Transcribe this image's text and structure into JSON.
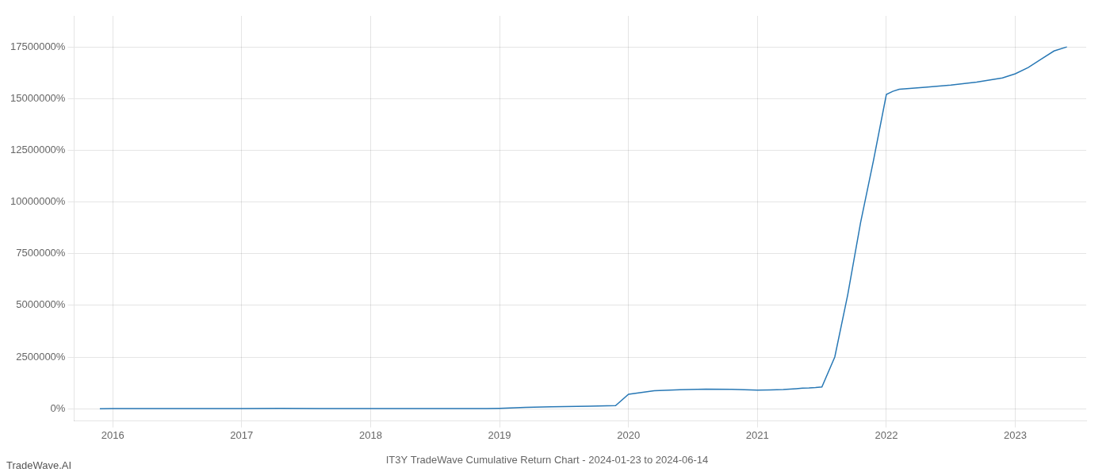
{
  "chart_data": {
    "type": "line",
    "title": "IT3Y TradeWave Cumulative Return Chart - 2024-01-23 to 2024-06-14",
    "annotations": [
      "TradeWave.AI"
    ],
    "color": "#2878b5",
    "grid": true,
    "x": [
      2015.9,
      2016.0,
      2016.5,
      2017.0,
      2017.3,
      2017.6,
      2018.0,
      2018.5,
      2018.9,
      2019.0,
      2019.2,
      2019.4,
      2019.7,
      2019.9,
      2020.0,
      2020.2,
      2020.4,
      2020.6,
      2020.8,
      2021.0,
      2021.1,
      2021.2,
      2021.3,
      2021.35,
      2021.4,
      2021.45,
      2021.5,
      2021.6,
      2021.7,
      2021.8,
      2021.9,
      2022.0,
      2022.05,
      2022.1,
      2022.2,
      2022.3,
      2022.5,
      2022.7,
      2022.9,
      2023.0,
      2023.1,
      2023.2,
      2023.3,
      2023.4
    ],
    "values": [
      0,
      2000,
      5000,
      10000,
      12000,
      10000,
      8000,
      5000,
      6000,
      20000,
      60000,
      90000,
      120000,
      150000,
      700000,
      870000,
      920000,
      950000,
      940000,
      900000,
      910000,
      930000,
      970000,
      990000,
      1000000,
      1020000,
      1050000,
      2500000,
      5500000,
      9000000,
      12000000,
      15200000,
      15350000,
      15450000,
      15500000,
      15550000,
      15650000,
      15800000,
      16000000,
      16200000,
      16500000,
      16900000,
      17300000,
      17500000
    ],
    "xlim": [
      2015.7,
      2023.55
    ],
    "xticks": [
      2016,
      2017,
      2018,
      2019,
      2020,
      2021,
      2022,
      2023
    ],
    "ylim": [
      -600000,
      19000000
    ],
    "yticks": [
      {
        "value": 0,
        "label": "0%"
      },
      {
        "value": 2500000,
        "label": "2500000%"
      },
      {
        "value": 5000000,
        "label": "5000000%"
      },
      {
        "value": 7500000,
        "label": "7500000%"
      },
      {
        "value": 10000000,
        "label": "10000000%"
      },
      {
        "value": 12500000,
        "label": "12500000%"
      },
      {
        "value": 15000000,
        "label": "15000000%"
      },
      {
        "value": 17500000,
        "label": "17500000%"
      }
    ]
  }
}
